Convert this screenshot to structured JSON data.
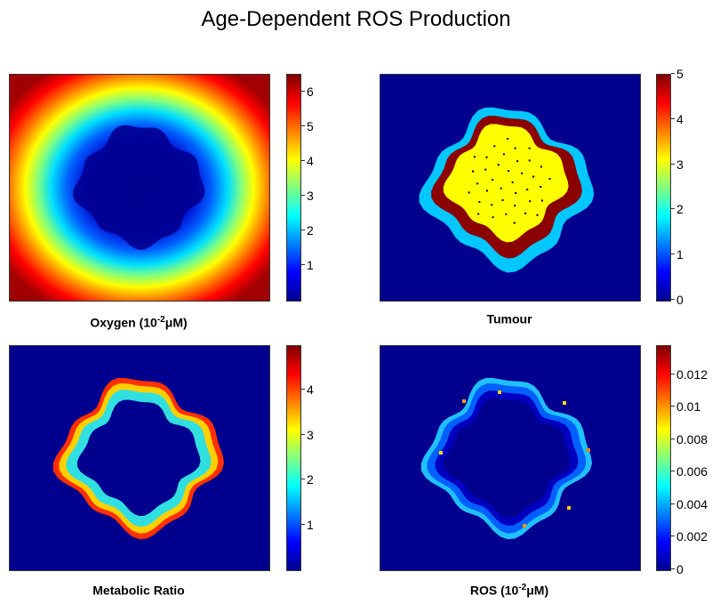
{
  "title": "Age-Dependent ROS Production",
  "colormap": [
    "#00008f",
    "#0000ff",
    "#0080ff",
    "#00ffff",
    "#80ff80",
    "#ffff00",
    "#ff8000",
    "#ff0000",
    "#800000"
  ],
  "chart_data": [
    {
      "type": "heatmap",
      "label_prefix": "Oxygen (10",
      "label_exp": "-2",
      "label_suffix": "μM)",
      "field": "oxygen",
      "clim": [
        0,
        6.5
      ],
      "ticks": [
        "1",
        "2",
        "3",
        "4",
        "5",
        "6"
      ],
      "tick_values": [
        1,
        2,
        3,
        4,
        5,
        6
      ]
    },
    {
      "type": "heatmap",
      "label_prefix": "Tumour",
      "label_exp": "",
      "label_suffix": "",
      "field": "tumour",
      "clim": [
        0,
        5
      ],
      "ticks": [
        "0",
        "1",
        "2",
        "3",
        "4",
        "5"
      ],
      "tick_values": [
        0,
        1,
        2,
        3,
        4,
        5
      ]
    },
    {
      "type": "heatmap",
      "label_prefix": "Metabolic Ratio",
      "label_exp": "",
      "label_suffix": "",
      "field": "metabolic",
      "clim": [
        0,
        5
      ],
      "ticks": [
        "1",
        "2",
        "3",
        "4"
      ],
      "tick_values": [
        1,
        2,
        3,
        4
      ]
    },
    {
      "type": "heatmap",
      "label_prefix": "ROS (10",
      "label_exp": "-2",
      "label_suffix": "μM)",
      "field": "ros",
      "clim": [
        0,
        0.0138
      ],
      "ticks": [
        "0",
        "0.002",
        "0.004",
        "0.006",
        "0.008",
        "0.01",
        "0.012"
      ],
      "tick_values": [
        0,
        0.002,
        0.004,
        0.006,
        0.008,
        0.01,
        0.012
      ]
    }
  ]
}
